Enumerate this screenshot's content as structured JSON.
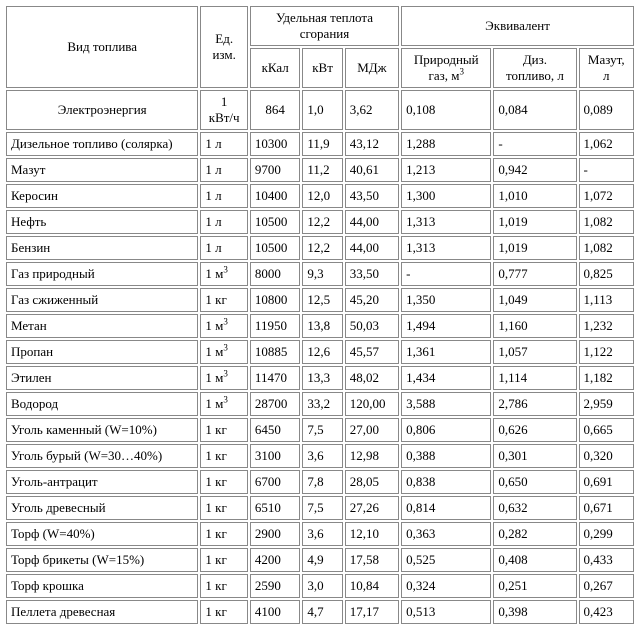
{
  "headers": {
    "fuel_type": "Вид топлива",
    "unit": "Ед. изм.",
    "heat_group": "Удельная теплота сгорания",
    "equiv_group": "Эквивалент",
    "kkal": "кКал",
    "kvt": "кВт",
    "mdj": "МДж",
    "nat_gas": "Природный газ, м",
    "nat_gas_sup": "3",
    "diesel": "Диз. топливо, л",
    "mazut": "Мазут, л"
  },
  "electro": {
    "name": "Электроэнергия",
    "unit_top": "1",
    "unit_bottom": "кВт/ч",
    "kkal": "864",
    "kvt": "1,0",
    "mdj": "3,62",
    "gas": "0,108",
    "diesel": "0,084",
    "mazut": "0,089"
  },
  "rows": [
    {
      "name": "Дизельное топливо (солярка)",
      "unit": "1 л",
      "kkal": "10300",
      "kvt": "11,9",
      "mdj": "43,12",
      "gas": "1,288",
      "diesel": "-",
      "mazut": "1,062"
    },
    {
      "name": "Мазут",
      "unit": "1 л",
      "kkal": "9700",
      "kvt": "11,2",
      "mdj": "40,61",
      "gas": "1,213",
      "diesel": "0,942",
      "mazut": "-"
    },
    {
      "name": "Керосин",
      "unit": "1 л",
      "kkal": "10400",
      "kvt": "12,0",
      "mdj": "43,50",
      "gas": "1,300",
      "diesel": "1,010",
      "mazut": "1,072"
    },
    {
      "name": "Нефть",
      "unit": "1 л",
      "kkal": "10500",
      "kvt": "12,2",
      "mdj": "44,00",
      "gas": "1,313",
      "diesel": "1,019",
      "mazut": "1,082"
    },
    {
      "name": "Бензин",
      "unit": "1 л",
      "kkal": "10500",
      "kvt": "12,2",
      "mdj": "44,00",
      "gas": "1,313",
      "diesel": "1,019",
      "mazut": "1,082"
    },
    {
      "name": "Газ природный",
      "unit": "1 м",
      "unit_sup": "3",
      "kkal": "8000",
      "kvt": "9,3",
      "mdj": "33,50",
      "gas": "-",
      "diesel": "0,777",
      "mazut": "0,825"
    },
    {
      "name": "Газ сжиженный",
      "unit": "1 кг",
      "kkal": "10800",
      "kvt": "12,5",
      "mdj": "45,20",
      "gas": "1,350",
      "diesel": "1,049",
      "mazut": "1,113"
    },
    {
      "name": "Метан",
      "unit": "1 м",
      "unit_sup": "3",
      "kkal": "11950",
      "kvt": "13,8",
      "mdj": "50,03",
      "gas": "1,494",
      "diesel": "1,160",
      "mazut": "1,232"
    },
    {
      "name": "Пропан",
      "unit": "1 м",
      "unit_sup": "3",
      "kkal": "10885",
      "kvt": "12,6",
      "mdj": "45,57",
      "gas": "1,361",
      "diesel": "1,057",
      "mazut": "1,122"
    },
    {
      "name": "Этилен",
      "unit": "1 м",
      "unit_sup": "3",
      "kkal": "11470",
      "kvt": "13,3",
      "mdj": "48,02",
      "gas": "1,434",
      "diesel": "1,114",
      "mazut": "1,182"
    },
    {
      "name": "Водород",
      "unit": "1 м",
      "unit_sup": "3",
      "kkal": "28700",
      "kvt": "33,2",
      "mdj": "120,00",
      "gas": "3,588",
      "diesel": "2,786",
      "mazut": "2,959"
    },
    {
      "name": "Уголь каменный (W=10%)",
      "unit": "1 кг",
      "kkal": "6450",
      "kvt": "7,5",
      "mdj": "27,00",
      "gas": "0,806",
      "diesel": "0,626",
      "mazut": "0,665"
    },
    {
      "name": "Уголь бурый (W=30…40%)",
      "unit": "1 кг",
      "kkal": "3100",
      "kvt": "3,6",
      "mdj": "12,98",
      "gas": "0,388",
      "diesel": "0,301",
      "mazut": "0,320"
    },
    {
      "name": "Уголь-антрацит",
      "unit": "1 кг",
      "kkal": "6700",
      "kvt": "7,8",
      "mdj": "28,05",
      "gas": "0,838",
      "diesel": "0,650",
      "mazut": "0,691"
    },
    {
      "name": "Уголь древесный",
      "unit": "1 кг",
      "kkal": "6510",
      "kvt": "7,5",
      "mdj": "27,26",
      "gas": "0,814",
      "diesel": "0,632",
      "mazut": "0,671"
    },
    {
      "name": "Торф (W=40%)",
      "unit": "1 кг",
      "kkal": "2900",
      "kvt": "3,6",
      "mdj": "12,10",
      "gas": "0,363",
      "diesel": "0,282",
      "mazut": "0,299"
    },
    {
      "name": "Торф брикеты (W=15%)",
      "unit": "1 кг",
      "kkal": "4200",
      "kvt": "4,9",
      "mdj": "17,58",
      "gas": "0,525",
      "diesel": "0,408",
      "mazut": "0,433"
    },
    {
      "name": "Торф крошка",
      "unit": "1 кг",
      "kkal": "2590",
      "kvt": "3,0",
      "mdj": "10,84",
      "gas": "0,324",
      "diesel": "0,251",
      "mazut": "0,267"
    },
    {
      "name": "Пеллета древесная",
      "unit": "1 кг",
      "kkal": "4100",
      "kvt": "4,7",
      "mdj": "17,17",
      "gas": "0,513",
      "diesel": "0,398",
      "mazut": "0,423"
    }
  ],
  "style": {
    "col_widths": {
      "name": 162,
      "unit": 40,
      "kkal": 42,
      "kvt": 34,
      "mdj": 44,
      "gas": 76,
      "diesel": 70,
      "mazut": 46
    }
  }
}
